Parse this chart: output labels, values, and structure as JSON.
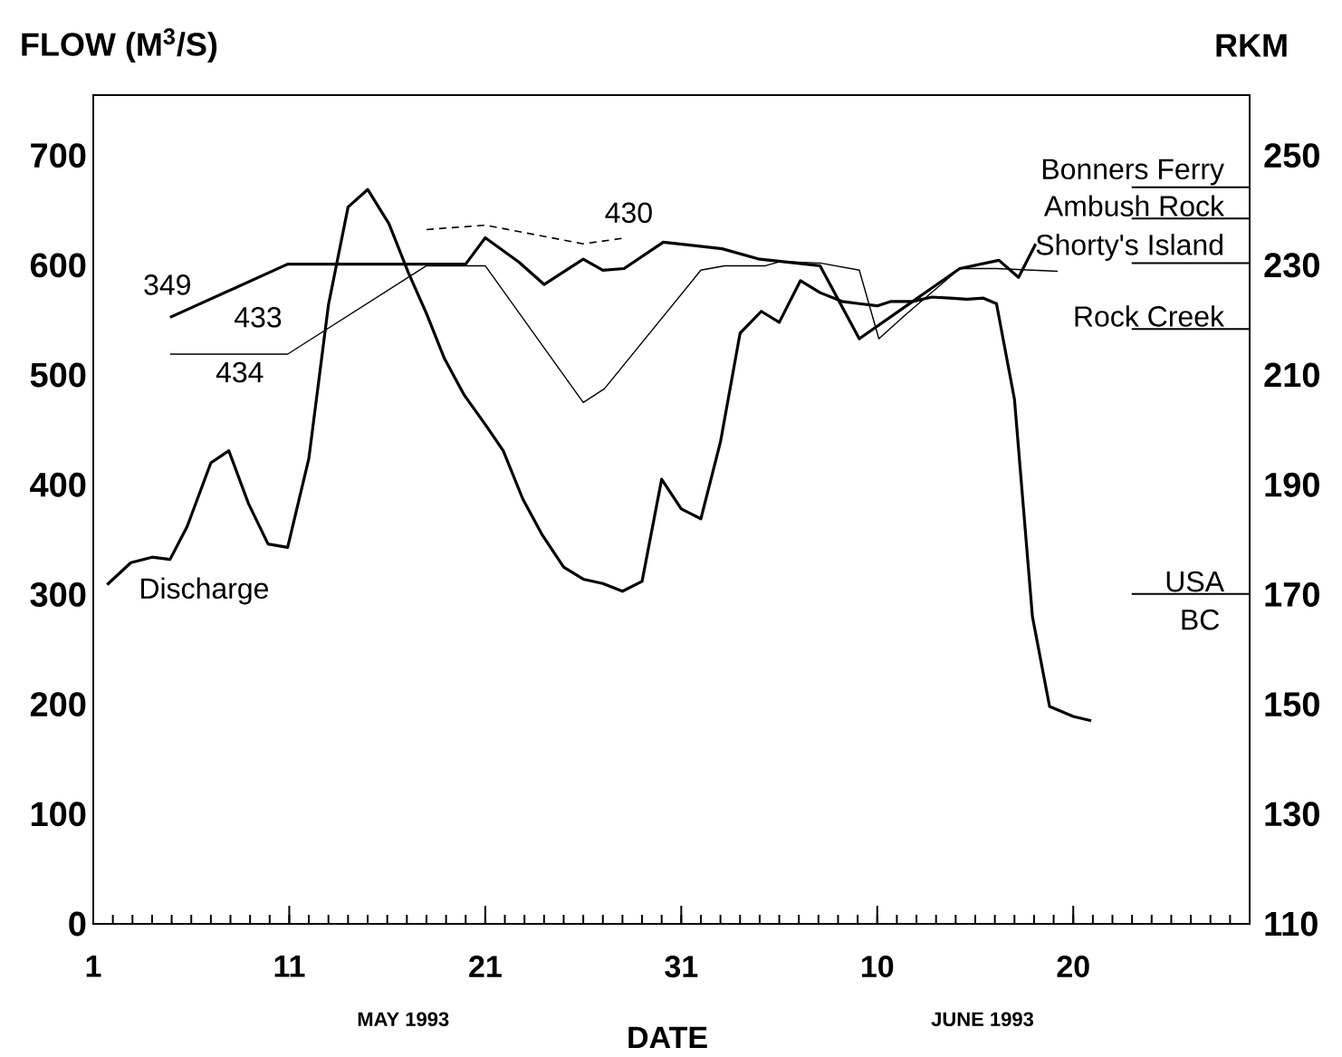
{
  "chart_data": {
    "type": "line",
    "xlabel": "DATE",
    "ylabel": "FLOW (M$^{3}$/S)",
    "y2label": "RKM",
    "xlim": [
      "1993-05-01",
      "1993-06-29"
    ],
    "xticks": [
      {
        "value": "1993-05-01",
        "label": "1"
      },
      {
        "value": "1993-05-11",
        "label": "11"
      },
      {
        "value": "1993-05-21",
        "label": "21"
      },
      {
        "value": "1993-05-31",
        "label": "31"
      },
      {
        "value": "1993-06-10",
        "label": "10"
      },
      {
        "value": "1993-06-20",
        "label": "20"
      }
    ],
    "ylim": [
      0,
      755
    ],
    "yticks": [
      0,
      100,
      200,
      300,
      400,
      500,
      600,
      700
    ],
    "y2lim": [
      110,
      261
    ],
    "y2ticks": [
      110,
      130,
      150,
      170,
      190,
      210,
      230,
      250
    ],
    "marker": "none",
    "series": [
      {
        "name": "Discharge",
        "color": "#000000",
        "x": [
          "1993-05-01T17:00",
          "1993-05-02T22:00",
          "1993-05-04",
          "1993-05-04T22:00",
          "1993-05-05T19:00",
          "1993-05-07",
          "1993-05-07T22:00",
          "1993-05-08T22:00",
          "1993-05-09T22:00",
          "1993-05-10T22:00",
          "1993-05-12",
          "1993-05-13",
          "1993-05-14",
          "1993-05-15",
          "1993-05-16T02:00",
          "1993-05-17T02:00",
          "1993-05-18",
          "1993-05-18T22:00",
          "1993-05-19T22:00",
          "1993-05-21",
          "1993-05-21T22:00",
          "1993-05-22T22:00",
          "1993-05-23T22:00",
          "1993-05-25",
          "1993-05-26",
          "1993-05-27",
          "1993-05-28",
          "1993-05-29",
          "1993-05-30",
          "1993-05-31",
          "1993-06-01",
          "1993-06-02",
          "1993-06-03",
          "1993-06-04T02:00",
          "1993-06-05",
          "1993-06-06T02:00",
          "1993-06-07T02:00",
          "1993-06-08T05:00",
          "1993-06-09T02:00",
          "1993-06-10",
          "1993-06-10T17:00",
          "1993-06-11T19:00",
          "1993-06-12T19:00",
          "1993-06-13T17:00",
          "1993-06-14T14:00",
          "1993-06-15T10:00",
          "1993-06-16T02:00",
          "1993-06-17",
          "1993-06-17T22:00",
          "1993-06-18T19:00",
          "1993-06-20",
          "1993-06-20T22:00"
        ],
        "values": [
          309,
          329,
          334,
          332,
          362,
          420,
          431,
          383,
          346,
          343,
          424,
          564,
          653,
          669,
          638,
          593,
          556,
          515,
          482,
          455,
          431,
          387,
          354,
          325,
          314,
          310,
          303,
          312,
          405,
          378,
          369,
          439,
          538,
          558,
          548,
          586,
          575,
          567,
          565,
          563,
          567,
          567,
          571,
          570,
          569,
          570,
          565,
          478,
          280,
          198,
          189,
          185
        ]
      },
      {
        "name": "349",
        "color": "#000000",
        "axis": "y2",
        "x": [
          "1993-05-04T22:00",
          "1993-05-10T22:00",
          "1993-05-20",
          "1993-05-21",
          "1993-05-22T17:00",
          "1993-05-24",
          "1993-05-26",
          "1993-05-27",
          "1993-05-28T02:00",
          "1993-05-30T02:00",
          "1993-06-02T02:00",
          "1993-06-04",
          "1993-06-05T02:00",
          "1993-06-07T02:00",
          "1993-06-09T02:00",
          "1993-06-14T05:00",
          "1993-06-16T05:00",
          "1993-06-17T05:00",
          "1993-06-18T02:00"
        ],
        "values": [
          220.5,
          230.2,
          230.2,
          235.0,
          230.6,
          226.5,
          231.1,
          229.1,
          229.4,
          234.2,
          233.0,
          231.1,
          230.7,
          229.9,
          216.6,
          229.4,
          230.9,
          227.8,
          233.9
        ]
      },
      {
        "name": "434",
        "color": "#000000",
        "axis": "y2",
        "x": [
          "1993-05-04T22:00",
          "1993-05-10T22:00",
          "1993-05-18",
          "1993-05-21",
          "1993-05-26",
          "1993-05-27T02:00",
          "1993-06-01",
          "1993-06-02T05:00",
          "1993-06-04T07:00",
          "1993-06-05T02:00",
          "1993-06-07T02:00",
          "1993-06-09T02:00",
          "1993-06-10T02:00",
          "1993-06-11T10:00",
          "1993-06-14T05:00",
          "1993-06-16T02:00",
          "1993-06-19T05:00"
        ],
        "values": [
          213.8,
          213.8,
          229.9,
          229.9,
          205.0,
          207.5,
          229.1,
          229.9,
          229.9,
          230.7,
          230.4,
          229.1,
          216.6,
          220.9,
          229.4,
          229.4,
          228.9
        ]
      },
      {
        "name": "430",
        "color": "#000000",
        "axis": "y2",
        "line_style": "dashed",
        "x": [
          "1993-05-18",
          "1993-05-21",
          "1993-05-26",
          "1993-05-28"
        ],
        "values": [
          236.5,
          237.3,
          233.9,
          234.9
        ]
      }
    ],
    "ref_lines": [
      {
        "axis": "y2",
        "value": 244.2,
        "label": "Bonners Ferry"
      },
      {
        "axis": "y2",
        "value": 238.5,
        "label": "Ambush Rock"
      },
      {
        "axis": "y2",
        "value": 230.4,
        "label": "Shorty's Island"
      },
      {
        "axis": "y2",
        "value": 218.4,
        "label": "Rock Creek"
      },
      {
        "axis": "y2",
        "value": 170.1,
        "label": "USA"
      }
    ],
    "annotations": [
      "433",
      "BC",
      "MAY 1993",
      "JUNE 1993"
    ]
  }
}
